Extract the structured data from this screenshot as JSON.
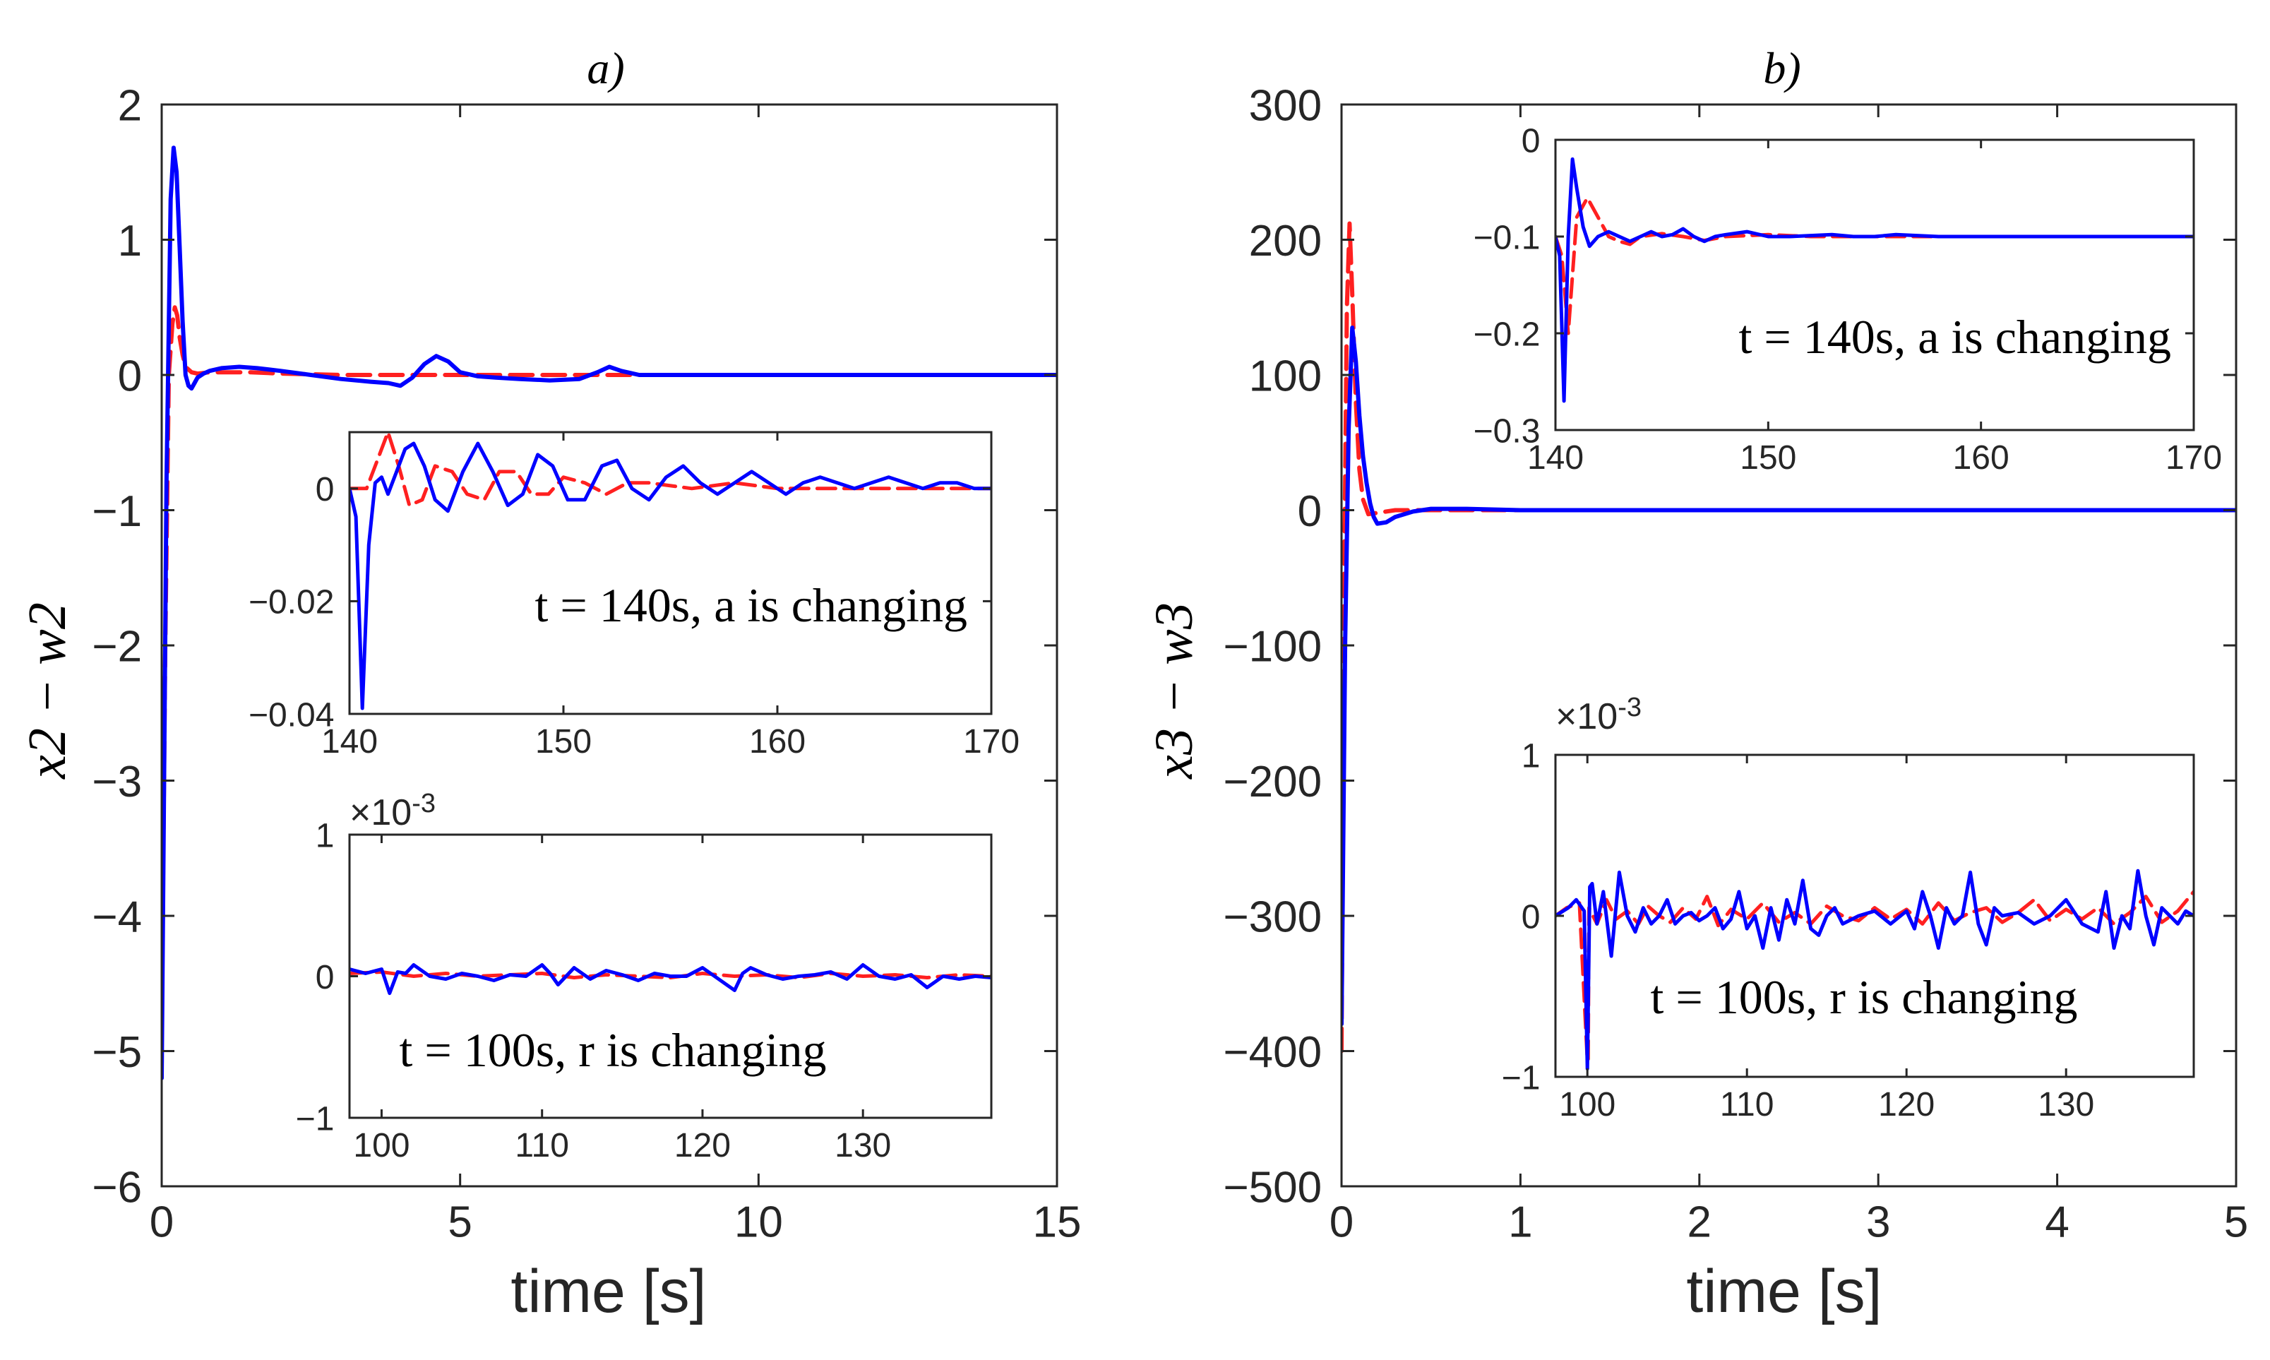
{
  "chart_data": [
    {
      "id": "a",
      "type": "line",
      "title": "a)",
      "xlabel": "time [s]",
      "ylabel": "x2 − w2",
      "xlim": [
        0,
        15
      ],
      "ylim": [
        -6,
        2
      ],
      "xticks": [
        0,
        5,
        10,
        15
      ],
      "yticks": [
        -6,
        -5,
        -4,
        -3,
        -2,
        -1,
        0,
        1,
        2
      ],
      "grid": false,
      "series": [
        {
          "name": "solid",
          "color": "#0000ff",
          "dash": "solid",
          "x": [
            0,
            0.08,
            0.15,
            0.2,
            0.25,
            0.3,
            0.35,
            0.4,
            0.45,
            0.5,
            0.55,
            0.6,
            0.7,
            0.8,
            1.0,
            1.3,
            1.6,
            2.0,
            2.5,
            3.0,
            3.5,
            3.8,
            4.0,
            4.2,
            4.4,
            4.6,
            4.8,
            5.0,
            5.3,
            5.6,
            6.0,
            6.5,
            7.0,
            7.3,
            7.5,
            7.7,
            8.0,
            9.0,
            10.0,
            12.0,
            15.0
          ],
          "y": [
            -5.2,
            -0.8,
            1.3,
            1.68,
            1.5,
            0.95,
            0.4,
            0.0,
            -0.08,
            -0.1,
            -0.06,
            -0.02,
            0.01,
            0.03,
            0.05,
            0.06,
            0.05,
            0.03,
            0.0,
            -0.03,
            -0.05,
            -0.06,
            -0.08,
            -0.02,
            0.08,
            0.14,
            0.1,
            0.02,
            -0.01,
            -0.02,
            -0.03,
            -0.04,
            -0.03,
            0.02,
            0.06,
            0.03,
            0.0,
            0.0,
            0.0,
            0.0,
            0.0
          ]
        },
        {
          "name": "dashed",
          "color": "#ff2020",
          "dash": "dashed",
          "x": [
            0,
            0.06,
            0.12,
            0.18,
            0.22,
            0.26,
            0.3,
            0.35,
            0.4,
            0.5,
            0.6,
            0.8,
            1.0,
            1.5,
            2.0,
            3.0,
            4.0,
            4.5,
            5.0,
            6.0,
            7.0,
            8.0,
            10.0,
            15.0
          ],
          "y": [
            -4.8,
            -2.0,
            0.0,
            0.38,
            0.5,
            0.44,
            0.28,
            0.15,
            0.06,
            0.02,
            0.01,
            0.02,
            0.02,
            0.02,
            0.01,
            0.0,
            0.0,
            0.0,
            0.0,
            0.0,
            0.0,
            0.0,
            0.0,
            0.0
          ]
        }
      ]
    },
    {
      "id": "a-inset-1",
      "type": "line",
      "annotation": "t = 140s, a is changing",
      "xlim": [
        140,
        170
      ],
      "ylim": [
        -0.04,
        0.01
      ],
      "xticks": [
        140,
        150,
        160,
        170
      ],
      "yticks": [
        -0.04,
        -0.02,
        0
      ],
      "series": [
        {
          "name": "solid",
          "color": "#0000ff",
          "dash": "solid",
          "x": [
            140,
            140.3,
            140.6,
            140.9,
            141.2,
            141.5,
            141.8,
            142.2,
            142.6,
            143.0,
            143.5,
            144.0,
            144.6,
            145.3,
            146.0,
            146.7,
            147.4,
            148.1,
            148.8,
            149.5,
            150.2,
            151.0,
            151.8,
            152.5,
            153.2,
            154.0,
            154.8,
            155.6,
            156.4,
            157.2,
            158.0,
            158.8,
            159.6,
            160.4,
            161.2,
            162.0,
            162.8,
            163.6,
            164.4,
            165.2,
            166.0,
            166.8,
            167.6,
            168.4,
            169.2,
            170
          ],
          "y": [
            0.0,
            -0.005,
            -0.039,
            -0.01,
            0.001,
            0.002,
            -0.001,
            0.003,
            0.007,
            0.008,
            0.004,
            -0.002,
            -0.004,
            0.003,
            0.008,
            0.003,
            -0.003,
            -0.001,
            0.006,
            0.004,
            -0.002,
            -0.002,
            0.004,
            0.005,
            0.0,
            -0.002,
            0.002,
            0.004,
            0.001,
            -0.001,
            0.001,
            0.003,
            0.001,
            -0.001,
            0.001,
            0.002,
            0.001,
            0.0,
            0.001,
            0.002,
            0.001,
            0.0,
            0.001,
            0.001,
            0.0,
            0.0
          ]
        },
        {
          "name": "dashed",
          "color": "#ff2020",
          "dash": "dashed",
          "x": [
            140,
            140.8,
            141.2,
            141.8,
            142.3,
            142.8,
            143.4,
            144.0,
            144.8,
            145.5,
            146.3,
            147.0,
            147.8,
            148.5,
            149.3,
            150.0,
            151.0,
            152.0,
            153.0,
            154.0,
            156.0,
            158.0,
            160.0,
            162.0,
            164.0,
            166.0,
            168.0,
            170
          ],
          "y": [
            0.0,
            0.0,
            0.004,
            0.01,
            0.004,
            -0.003,
            -0.002,
            0.004,
            0.003,
            -0.001,
            -0.002,
            0.003,
            0.003,
            -0.001,
            -0.001,
            0.002,
            0.001,
            -0.001,
            0.001,
            0.001,
            0.0,
            0.001,
            0.0,
            0.0,
            0.0,
            0.0,
            0.0,
            0.0
          ]
        }
      ]
    },
    {
      "id": "a-inset-2",
      "type": "line",
      "annotation": "t = 100s, r is changing",
      "exponent": "×10",
      "exponent_power": "-3",
      "xlim": [
        98,
        138
      ],
      "ylim": [
        -1,
        1
      ],
      "xticks": [
        100,
        110,
        120,
        130
      ],
      "yticks": [
        -1,
        0,
        1
      ],
      "series": [
        {
          "name": "solid",
          "color": "#0000ff",
          "dash": "solid",
          "x": [
            98,
            99,
            100,
            100.5,
            101,
            101.5,
            102,
            102.5,
            103,
            104,
            105,
            106,
            107,
            108,
            109,
            110,
            110.5,
            111,
            111.5,
            112,
            113,
            114,
            115,
            116,
            117,
            118,
            119,
            120,
            121,
            122,
            122.5,
            123,
            124,
            125,
            126,
            127,
            128,
            129,
            130,
            131,
            132,
            133,
            134,
            135,
            136,
            137,
            138
          ],
          "y": [
            0.05,
            0.02,
            0.05,
            -0.12,
            0.03,
            0.02,
            0.08,
            0.04,
            0.0,
            -0.02,
            0.02,
            0.0,
            -0.03,
            0.01,
            0.0,
            0.08,
            0.02,
            -0.06,
            0.0,
            0.06,
            -0.02,
            0.04,
            0.01,
            -0.03,
            0.02,
            0.0,
            0.0,
            0.06,
            -0.02,
            -0.1,
            0.02,
            0.06,
            0.01,
            -0.02,
            0.0,
            0.01,
            0.03,
            -0.02,
            0.08,
            0.0,
            -0.02,
            0.01,
            -0.08,
            0.0,
            -0.02,
            0.0,
            -0.01
          ]
        },
        {
          "name": "dashed",
          "color": "#ff2020",
          "dash": "dashed",
          "x": [
            98,
            100,
            102,
            104,
            106,
            108,
            110,
            112,
            114,
            116,
            118,
            120,
            122,
            124,
            126,
            128,
            130,
            132,
            134,
            136,
            138
          ],
          "y": [
            0.02,
            0.03,
            0.0,
            0.02,
            0.0,
            0.01,
            0.02,
            -0.01,
            0.01,
            0.0,
            -0.01,
            0.02,
            0.0,
            0.01,
            -0.01,
            0.02,
            0.0,
            0.01,
            -0.01,
            0.01,
            0.0
          ]
        }
      ]
    },
    {
      "id": "b",
      "type": "line",
      "title": "b)",
      "xlabel": "time [s]",
      "ylabel": "x3 − w3",
      "xlim": [
        0,
        5
      ],
      "ylim": [
        -500,
        300
      ],
      "xticks": [
        0,
        1,
        2,
        3,
        4,
        5
      ],
      "yticks": [
        -500,
        -400,
        -300,
        -200,
        -100,
        0,
        100,
        200,
        300
      ],
      "grid": false,
      "series": [
        {
          "name": "solid",
          "color": "#0000ff",
          "dash": "solid",
          "x": [
            0,
            0.02,
            0.04,
            0.06,
            0.08,
            0.1,
            0.12,
            0.14,
            0.16,
            0.18,
            0.2,
            0.25,
            0.3,
            0.4,
            0.5,
            0.7,
            1.0,
            1.5,
            2.0,
            3.0,
            4.0,
            5.0
          ],
          "y": [
            -380,
            -100,
            60,
            135,
            110,
            70,
            40,
            20,
            5,
            -5,
            -10,
            -9,
            -5,
            -1,
            1,
            1,
            0,
            0,
            0,
            0,
            0,
            0
          ]
        },
        {
          "name": "dashed",
          "color": "#ff2020",
          "dash": "dashed",
          "x": [
            0,
            0.015,
            0.03,
            0.045,
            0.06,
            0.08,
            0.1,
            0.12,
            0.15,
            0.2,
            0.3,
            0.5,
            1.0,
            2.0,
            3.0,
            4.0,
            5.0
          ],
          "y": [
            -400,
            -50,
            150,
            212,
            160,
            80,
            30,
            8,
            -3,
            -2,
            0,
            0,
            0,
            0,
            0,
            0,
            0
          ]
        }
      ]
    },
    {
      "id": "b-inset-1",
      "type": "line",
      "annotation": "t = 140s, a is changing",
      "xlim": [
        140,
        170
      ],
      "ylim": [
        -0.3,
        0
      ],
      "xticks": [
        140,
        150,
        160,
        170
      ],
      "yticks": [
        -0.3,
        -0.2,
        -0.1,
        0
      ],
      "series": [
        {
          "name": "solid",
          "color": "#0000ff",
          "dash": "solid",
          "x": [
            140,
            140.2,
            140.4,
            140.6,
            140.8,
            141.0,
            141.3,
            141.6,
            142.0,
            142.5,
            143.0,
            143.5,
            144.0,
            144.5,
            145.0,
            145.5,
            146.0,
            146.5,
            147.0,
            147.5,
            148.0,
            149.0,
            150.0,
            151.0,
            152.0,
            153.0,
            154.0,
            155.0,
            156.0,
            158.0,
            160.0,
            162.0,
            165.0,
            170
          ],
          "y": [
            -0.1,
            -0.12,
            -0.27,
            -0.1,
            -0.02,
            -0.05,
            -0.09,
            -0.11,
            -0.1,
            -0.095,
            -0.1,
            -0.105,
            -0.1,
            -0.095,
            -0.1,
            -0.098,
            -0.092,
            -0.1,
            -0.105,
            -0.1,
            -0.098,
            -0.095,
            -0.1,
            -0.1,
            -0.099,
            -0.098,
            -0.1,
            -0.1,
            -0.098,
            -0.1,
            -0.1,
            -0.1,
            -0.1,
            -0.1
          ]
        },
        {
          "name": "dashed",
          "color": "#ff2020",
          "dash": "dashed",
          "x": [
            140,
            140.3,
            140.6,
            141.0,
            141.5,
            142.0,
            142.5,
            143.0,
            143.5,
            144.0,
            145.0,
            146.0,
            147.0,
            148.0,
            150.0,
            152.0,
            155.0,
            160.0,
            165.0,
            170
          ],
          "y": [
            -0.1,
            -0.12,
            -0.2,
            -0.08,
            -0.06,
            -0.08,
            -0.1,
            -0.105,
            -0.108,
            -0.1,
            -0.097,
            -0.1,
            -0.104,
            -0.1,
            -0.098,
            -0.1,
            -0.1,
            -0.1,
            -0.1,
            -0.1
          ]
        }
      ]
    },
    {
      "id": "b-inset-2",
      "type": "line",
      "annotation": "t = 100s, r is changing",
      "exponent": "×10",
      "exponent_power": "-3",
      "xlim": [
        98,
        138
      ],
      "ylim": [
        -1,
        1
      ],
      "xticks": [
        100,
        110,
        120,
        130
      ],
      "yticks": [
        -1,
        0,
        1
      ],
      "series": [
        {
          "name": "solid",
          "color": "#0000ff",
          "dash": "solid",
          "x": [
            98,
            98.8,
            99.3,
            99.8,
            100,
            100.15,
            100.3,
            100.6,
            101.0,
            101.5,
            102.0,
            102.5,
            103.0,
            103.5,
            104.0,
            104.5,
            105.0,
            105.5,
            106,
            106.5,
            107,
            107.5,
            108,
            108.5,
            109,
            109.5,
            110,
            110.5,
            111,
            111.5,
            112,
            112.5,
            113,
            113.5,
            114,
            114.5,
            115,
            115.5,
            116,
            117,
            118,
            119,
            120,
            120.5,
            121,
            121.5,
            122,
            122.5,
            123,
            123.5,
            124,
            124.5,
            125,
            125.5,
            126,
            127,
            128,
            129,
            130,
            131,
            132,
            132.5,
            133,
            133.5,
            134,
            134.5,
            135,
            135.5,
            136,
            136.5,
            137,
            137.5,
            138
          ],
          "y": [
            0.0,
            0.05,
            0.1,
            0.03,
            -0.95,
            0.18,
            0.2,
            -0.05,
            0.15,
            -0.25,
            0.27,
            0.0,
            -0.1,
            0.05,
            -0.05,
            0.0,
            0.1,
            -0.05,
            0.0,
            0.02,
            -0.03,
            0.0,
            0.05,
            -0.08,
            -0.02,
            0.15,
            -0.08,
            0.0,
            -0.2,
            0.05,
            -0.15,
            0.1,
            -0.05,
            0.22,
            -0.08,
            -0.12,
            0.0,
            0.05,
            -0.05,
            0.0,
            0.03,
            -0.05,
            0.03,
            -0.08,
            0.15,
            0.0,
            -0.2,
            0.05,
            -0.05,
            0.0,
            0.27,
            -0.05,
            -0.18,
            0.05,
            0.0,
            0.02,
            -0.05,
            0.0,
            0.1,
            -0.05,
            -0.1,
            0.15,
            -0.2,
            0.0,
            -0.08,
            0.28,
            0.0,
            -0.18,
            0.05,
            0.0,
            -0.05,
            0.03,
            0.0
          ]
        },
        {
          "name": "dashed",
          "color": "#ff2020",
          "dash": "dashed",
          "x": [
            98,
            98.7,
            99.5,
            100,
            100.05,
            100.1,
            100.6,
            101.2,
            101.8,
            102.5,
            103.2,
            103.8,
            104.5,
            105.2,
            106,
            106.8,
            107.5,
            108.2,
            109,
            110,
            111,
            112,
            113,
            114,
            115,
            116,
            117,
            118,
            119,
            120,
            121,
            122,
            123,
            124,
            125,
            126,
            127,
            128,
            129,
            130,
            131,
            132,
            133,
            134,
            135,
            136,
            137,
            138
          ],
          "y": [
            0.0,
            0.05,
            0.08,
            -0.9,
            -0.9,
            0.05,
            -0.05,
            0.1,
            -0.02,
            0.03,
            -0.05,
            0.06,
            0.0,
            -0.04,
            0.05,
            -0.02,
            0.12,
            -0.06,
            0.04,
            -0.02,
            0.08,
            -0.04,
            0.02,
            -0.05,
            0.06,
            0.0,
            -0.03,
            0.05,
            -0.02,
            0.04,
            -0.05,
            0.08,
            -0.03,
            0.02,
            0.05,
            -0.04,
            0.02,
            0.1,
            -0.03,
            0.04,
            -0.02,
            0.05,
            -0.05,
            0.02,
            0.12,
            -0.04,
            0.03,
            0.15
          ]
        }
      ]
    }
  ]
}
